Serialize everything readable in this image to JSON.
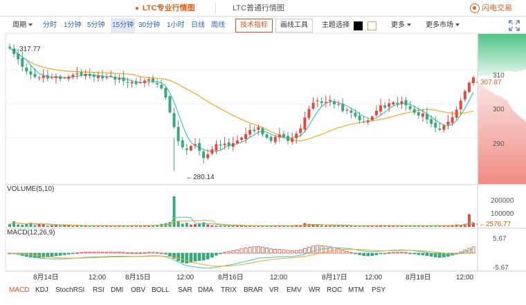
{
  "tabs": [
    {
      "label": "LTC专业行情图",
      "active": true
    },
    {
      "label": "LTC普通行情图",
      "active": false
    }
  ],
  "brand": "闪电交易",
  "toolbar": {
    "period_menu": "周期",
    "periods": [
      "分时",
      "1分钟",
      "5分钟",
      "15分钟",
      "30分钟",
      "1小时",
      "日线",
      "周线"
    ],
    "active_period": "15分钟",
    "tech_indicators": "技术指标",
    "drawing_tools": "画线工具",
    "theme_label": "主题选择",
    "theme_colors": [
      "#000000",
      "#ffffff"
    ],
    "more": "更多",
    "more_markets": "更多市场"
  },
  "colors": {
    "up": "#e24a3b",
    "down": "#3aa87a",
    "ma_short": "#3cc8b4",
    "ma_long": "#f5a623",
    "accent": "#e0601a",
    "link": "#2a62c9"
  },
  "chart_data": {
    "type": "candlestick",
    "price_axis_ticks": [
      310,
      300,
      290
    ],
    "price_range": [
      276.77,
      320.1
    ],
    "current_price": "307.87",
    "high_label": "317.77",
    "low_label": "280.14",
    "volume_label": "VOLUME(5,10)",
    "volume_axis_ticks": [
      "200000",
      "100000"
    ],
    "current_volume": "2576.77",
    "macd_label": "MACD(12,26,9)",
    "macd_axis_ticks": [
      "5.67",
      "-5.67"
    ],
    "time_labels": [
      "8月14日",
      "12:00",
      "8月15日",
      "12:00",
      "8月16日",
      "12:00",
      "8月17日",
      "12:00",
      "8月18日",
      "12:00"
    ],
    "closes": [
      316.5,
      314.8,
      313.2,
      311.0,
      309.6,
      308.7,
      308.0,
      307.8,
      308.4,
      307.5,
      307.9,
      308.2,
      307.4,
      307.8,
      308.1,
      308.6,
      309.0,
      308.5,
      308.9,
      308.3,
      308.0,
      308.4,
      307.6,
      307.9,
      308.3,
      307.2,
      307.6,
      306.8,
      306.2,
      306.5,
      305.9,
      306.4,
      306.9,
      307.3,
      306.5,
      305.8,
      304.6,
      301.9,
      297.5,
      293.2,
      289.0,
      287.2,
      286.4,
      287.6,
      288.1,
      286.2,
      284.0,
      285.1,
      286.6,
      288.1,
      287.7,
      288.3,
      287.6,
      288.4,
      289.2,
      290.0,
      291.1,
      292.3,
      292.0,
      293.1,
      291.0,
      290.0,
      289.1,
      290.3,
      291.0,
      290.2,
      289.1,
      289.9,
      291.2,
      292.8,
      296.0,
      298.5,
      300.4,
      301.0,
      300.3,
      300.6,
      301.2,
      299.9,
      300.0,
      297.9,
      298.3,
      297.4,
      296.3,
      295.2,
      294.7,
      295.1,
      296.3,
      298.0,
      299.6,
      298.9,
      300.2,
      300.5,
      299.9,
      300.8,
      299.6,
      298.5,
      297.4,
      296.6,
      297.2,
      295.4,
      294.1,
      293.0,
      292.4,
      293.6,
      294.8,
      296.1,
      298.3,
      301.0,
      303.8,
      306.2,
      307.87
    ],
    "volumes": [
      20000,
      42000,
      18000,
      15000,
      22000,
      31000,
      12000,
      25000,
      18000,
      9000,
      11000,
      14000,
      8000,
      16000,
      12000,
      7000,
      9000,
      13000,
      10000,
      6000,
      8000,
      12000,
      9000,
      11000,
      7000,
      8000,
      13000,
      9000,
      10000,
      8000,
      14000,
      9000,
      11000,
      12000,
      10000,
      15000,
      22000,
      28000,
      36000,
      230000,
      45000,
      24000,
      30000,
      16000,
      20000,
      26000,
      34000,
      18000,
      12000,
      9000,
      10000,
      8000,
      11000,
      7000,
      9000,
      8000,
      10000,
      12000,
      9000,
      8000,
      7000,
      11000,
      9000,
      8000,
      10000,
      9000,
      8000,
      12000,
      15000,
      13000,
      28000,
      22000,
      18000,
      14000,
      10000,
      9000,
      8000,
      11000,
      12000,
      9000,
      10000,
      8000,
      9000,
      7000,
      12000,
      10000,
      11000,
      9000,
      14000,
      8000,
      10000,
      9000,
      11000,
      8000,
      13000,
      9000,
      10000,
      8000,
      7000,
      9000,
      11000,
      12000,
      8000,
      9000,
      10000,
      14000,
      18000,
      16000,
      22000,
      95000,
      31000
    ]
  },
  "indicators": [
    "MACD",
    "KDJ",
    "StochRSI",
    "RSI",
    "DMI",
    "OBV",
    "BOLL",
    "SAR",
    "DMA",
    "TRIX",
    "BRAR",
    "VR",
    "EMV",
    "WR",
    "ROC",
    "MTM",
    "PSY"
  ],
  "active_indicator": "MACD"
}
